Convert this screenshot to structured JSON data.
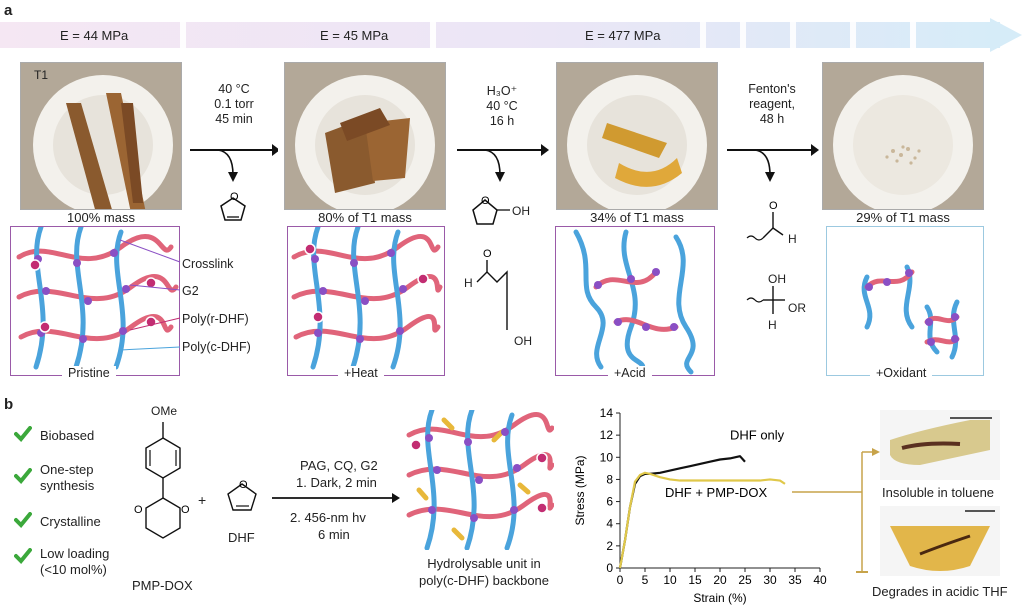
{
  "panel_a": {
    "letter": "a",
    "moduli": [
      "E = 44 MPa",
      "E = 45 MPa",
      "E = 477 MPa"
    ],
    "sample_label": "T1",
    "masses": [
      "100% mass",
      "80% of T1 mass",
      "34% of T1 mass",
      "29% of T1 mass"
    ],
    "step1": {
      "lines": [
        "40 °C",
        "0.1 torr",
        "45 min"
      ]
    },
    "step2": {
      "lines": [
        "H₃O⁺",
        "40 °C",
        "16 h"
      ]
    },
    "step3": {
      "lines": [
        "Fenton's",
        "reagent,",
        "48 h"
      ]
    },
    "legend": [
      "Crosslink",
      "G2",
      "Poly(r-DHF)",
      "Poly(c-DHF)"
    ],
    "network_labels": [
      "Pristine",
      "+Heat",
      "+Acid",
      "+Oxidant"
    ],
    "chem_labels": {
      "oh": "OH",
      "h": "H",
      "or": "OR"
    }
  },
  "panel_b": {
    "letter": "b",
    "checks": [
      {
        "text": "Biobased"
      },
      {
        "text": "One-step synthesis",
        "lines": [
          "One-step",
          "synthesis"
        ]
      },
      {
        "text": "Crystalline"
      },
      {
        "text": "Low loading (<10 mol%)",
        "lines": [
          "Low loading",
          "(<10 mol%)"
        ]
      }
    ],
    "monomer1": {
      "name": "PMP-DOX",
      "substituent": "OMe"
    },
    "plus": "+",
    "monomer2": {
      "name": "DHF"
    },
    "conditions": {
      "line1": "PAG, CQ, G2",
      "line2": "1. Dark, 2 min",
      "line3": "2. 456-nm hv",
      "line4": "6 min"
    },
    "product": {
      "line1": "Hydrolysable unit in",
      "line2": "poly(c-DHF) backbone"
    },
    "photos": [
      "Insoluble in toluene",
      "Degrades in acidic THF"
    ]
  },
  "colors": {
    "red_chain": "#e0647a",
    "blue_chain": "#4aa3dc",
    "crosslink": "#8a4fc4",
    "box_purple": "#9a5aa8",
    "box_blue": "#9cc9e0",
    "yellow_unit": "#e8b83a",
    "check_green": "#3ba83b",
    "black_series": "#111111",
    "yellow_series": "#e0c84a"
  },
  "chart_data": {
    "type": "line",
    "xlabel": "Strain (%)",
    "ylabel": "Stress (MPa)",
    "xlim": [
      0,
      40
    ],
    "ylim": [
      0,
      14
    ],
    "xticks": [
      0,
      5,
      10,
      15,
      20,
      25,
      30,
      35,
      40
    ],
    "yticks": [
      0,
      2,
      4,
      6,
      8,
      10,
      12,
      14
    ],
    "series": [
      {
        "name": "DHF only",
        "color": "#111111",
        "x": [
          0,
          1,
          2,
          3,
          4,
          5,
          6,
          8,
          10,
          12,
          14,
          16,
          18,
          20,
          22,
          24,
          25
        ],
        "y": [
          0,
          2.5,
          5.5,
          7.6,
          8.3,
          8.5,
          8.5,
          8.6,
          8.8,
          9.0,
          9.2,
          9.4,
          9.6,
          9.8,
          9.9,
          10.1,
          9.6
        ]
      },
      {
        "name": "DHF + PMP-DOX",
        "color": "#e0c84a",
        "x": [
          0,
          1,
          2,
          3,
          4,
          5,
          6,
          8,
          10,
          12,
          14,
          16,
          18,
          20,
          22,
          24,
          26,
          28,
          30,
          32,
          33
        ],
        "y": [
          0,
          2.5,
          5.5,
          7.8,
          8.4,
          8.6,
          8.5,
          8.2,
          8.0,
          7.9,
          7.9,
          7.9,
          7.9,
          7.9,
          7.9,
          7.9,
          7.9,
          7.9,
          8.0,
          7.9,
          7.6
        ]
      }
    ]
  }
}
